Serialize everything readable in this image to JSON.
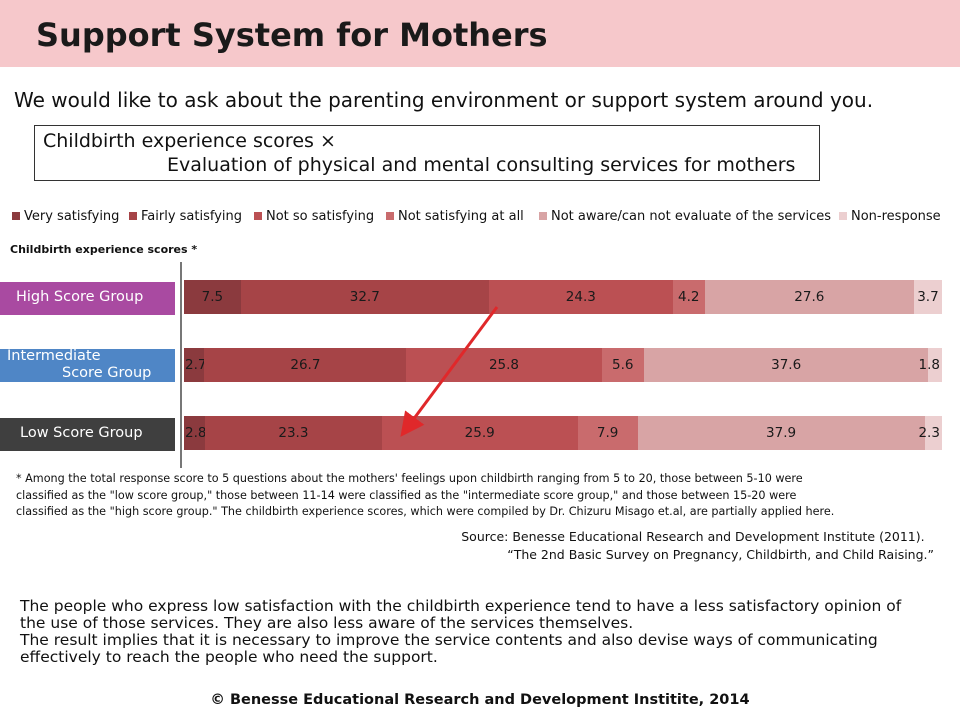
{
  "header": {
    "title": "Support System for Mothers"
  },
  "question": "We would like to ask about the parenting environment or support system around you.",
  "subtitle": {
    "line1": "Childbirth experience scores ×",
    "line2": "Evaluation of physical and mental consulting services for mothers"
  },
  "colors": {
    "very_satisfying": "#8b3a3e",
    "fairly_satisfying": "#a64447",
    "not_so_satisfying": "#bb5053",
    "not_satisfying_at_all": "#c96b6d",
    "not_aware": "#d8a4a5",
    "non_response": "#eccfd0",
    "title_bar": "#f6c8cb",
    "high_group": "#a94aa1",
    "intermediate_group": "#4f86c6",
    "low_group": "#3f3f3f",
    "arrow": "#e0282a"
  },
  "chart_data": {
    "type": "bar",
    "orientation": "horizontal-stacked-100",
    "axis_caption": "Childbirth experience scores *",
    "categories": [
      "High Score Group",
      "Intermediate Score Group",
      "Low Score Group"
    ],
    "category_display": [
      [
        "High Score Group"
      ],
      [
        "Intermediate",
        "Score Group"
      ],
      [
        "Low Score Group"
      ]
    ],
    "series": [
      {
        "name": "Very satisfying",
        "values": [
          7.5,
          2.7,
          2.8
        ]
      },
      {
        "name": "Fairly satisfying",
        "values": [
          32.7,
          26.7,
          23.3
        ]
      },
      {
        "name": "Not so satisfying",
        "values": [
          24.3,
          25.8,
          25.9
        ]
      },
      {
        "name": "Not satisfying at all",
        "values": [
          4.2,
          5.6,
          7.9
        ]
      },
      {
        "name": "Not aware/can not evaluate of the services",
        "values": [
          27.6,
          37.6,
          37.9
        ]
      },
      {
        "name": "Non-response",
        "values": [
          3.7,
          1.8,
          2.3
        ]
      }
    ],
    "ylim": [
      0,
      100
    ],
    "legend_position": "top"
  },
  "footnote": [
    "* Among the total response score to 5 questions about the mothers' feelings upon childbirth ranging from 5 to 20, those between 5-10 were",
    "  classified as the \"low score group,\" those between 11-14 were classified as the \"intermediate score group,\" and those between 15-20 were",
    "  classified as the \"high score group.\" The childbirth experience scores, which were compiled by Dr. Chizuru Misago et.al, are partially applied here."
  ],
  "source": [
    "Source: Benesse Educational Research and Development Institute (2011).",
    "“The 2nd Basic Survey on Pregnancy, Childbirth, and Child Raising.”"
  ],
  "conclusion": [
    "The people who express low satisfaction with the childbirth experience tend to have a less satisfactory opinion of",
    "the use of those services. They are also less aware of the services themselves.",
    "The result implies that it is necessary to improve the service contents and also devise ways of communicating",
    "effectively to reach the people who need the support."
  ],
  "copyright": "©  Benesse Educational Research and Development Institite, 2014"
}
